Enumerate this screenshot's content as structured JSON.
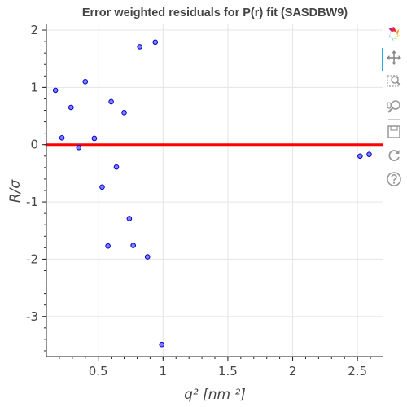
{
  "chart_data": {
    "type": "scatter",
    "title": "Error weighted residuals for P(r) fit (SASDBW9)",
    "xlabel": "q² [nm ²]",
    "ylabel": "R/σ",
    "xlim": [
      0.1,
      2.7
    ],
    "ylim": [
      -3.7,
      2.1
    ],
    "x_ticks": [
      0.5,
      1,
      1.5,
      2,
      2.5
    ],
    "x_tick_labels": [
      "0.5",
      "1",
      "1.5",
      "2",
      "2.5"
    ],
    "y_ticks": [
      2,
      1,
      0,
      -1,
      -2,
      -3
    ],
    "y_tick_labels": [
      "2",
      "1",
      "0",
      "-1",
      "-2",
      "-3"
    ],
    "grid": true,
    "reference_line": {
      "y": 0,
      "color": "#ff0000"
    },
    "marker": {
      "fill": "#8080ff",
      "stroke": "#0000cc"
    },
    "points": [
      {
        "x": 0.17,
        "y": 0.95
      },
      {
        "x": 0.22,
        "y": 0.12
      },
      {
        "x": 0.29,
        "y": 0.65
      },
      {
        "x": 0.35,
        "y": -0.05
      },
      {
        "x": 0.4,
        "y": 1.1
      },
      {
        "x": 0.47,
        "y": 0.11
      },
      {
        "x": 0.53,
        "y": -0.74
      },
      {
        "x": 0.575,
        "y": -1.77
      },
      {
        "x": 0.6,
        "y": 0.75
      },
      {
        "x": 0.64,
        "y": -0.39
      },
      {
        "x": 0.7,
        "y": 0.56
      },
      {
        "x": 0.74,
        "y": -1.29
      },
      {
        "x": 0.77,
        "y": -1.76
      },
      {
        "x": 0.82,
        "y": 1.71
      },
      {
        "x": 0.88,
        "y": -1.96
      },
      {
        "x": 0.94,
        "y": 1.79
      },
      {
        "x": 0.99,
        "y": -3.49
      },
      {
        "x": 2.52,
        "y": -0.2
      },
      {
        "x": 2.59,
        "y": -0.17
      }
    ]
  },
  "toolbar": {
    "tools": [
      {
        "name": "bokeh-logo",
        "icon": "bokeh-logo-icon",
        "interactable": false
      },
      {
        "name": "pan-tool",
        "icon": "pan-icon",
        "interactable": true,
        "active": true
      },
      {
        "name": "box-zoom-tool",
        "icon": "box-zoom-icon",
        "interactable": true
      },
      {
        "name": "wheel-zoom-tool",
        "icon": "wheel-zoom-icon",
        "interactable": true
      },
      {
        "name": "save-tool",
        "icon": "save-icon",
        "interactable": true
      },
      {
        "name": "reset-tool",
        "icon": "reset-icon",
        "interactable": true
      },
      {
        "name": "help-tool",
        "icon": "help-icon",
        "interactable": true
      }
    ]
  }
}
